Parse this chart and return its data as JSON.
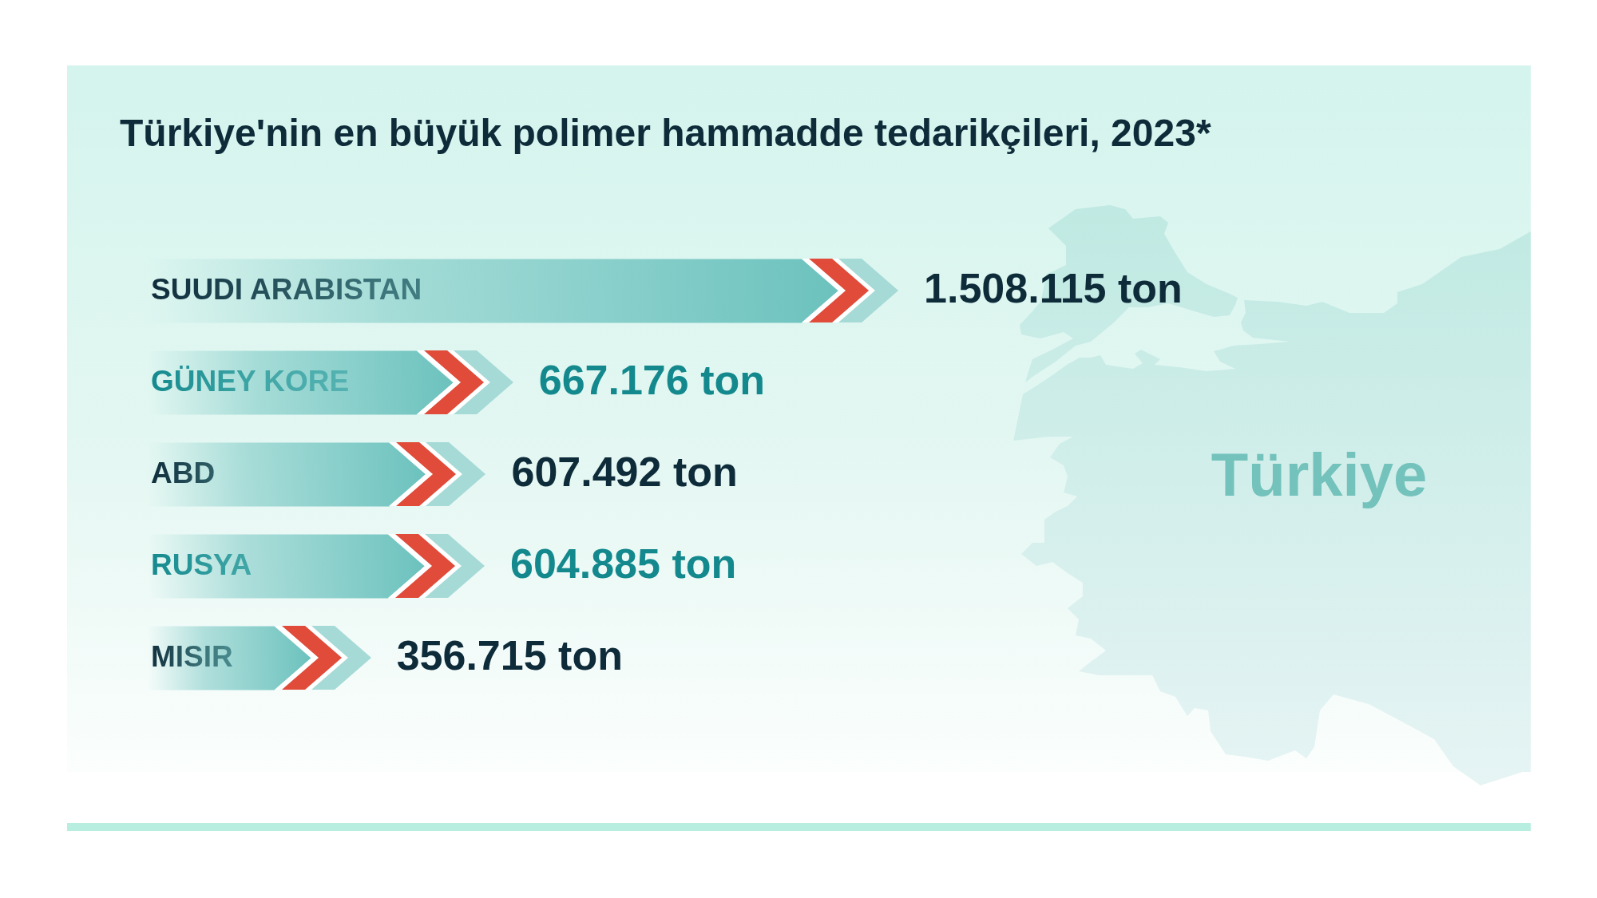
{
  "chart_data": {
    "type": "bar",
    "orientation": "horizontal",
    "title": "Türkiye'nin en büyük polimer hammadde tedarikçileri, 2023*",
    "categories": [
      "SUUDI ARABISTAN",
      "GÜNEY KORE",
      "ABD",
      "RUSYA",
      "MISIR"
    ],
    "values": [
      1508115,
      667176,
      607492,
      604885,
      356715
    ],
    "value_labels": [
      "1.508.115 ton",
      "667.176 ton",
      "607.492 ton",
      "604.885 ton",
      "356.715 ton"
    ],
    "color": "#6cc2be",
    "tick_labels": "y",
    "annotations": [
      "Türkiye"
    ]
  }
}
